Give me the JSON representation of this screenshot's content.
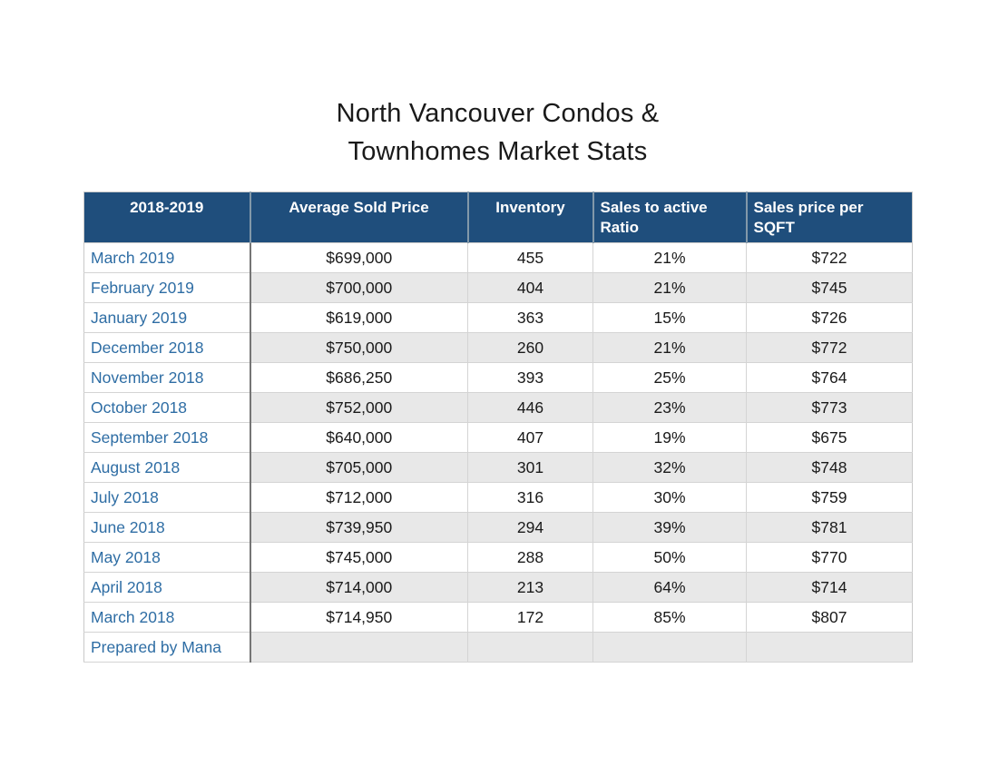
{
  "title": {
    "line1": "North Vancouver Condos &",
    "line2": "Townhomes Market Stats"
  },
  "table": {
    "columns": [
      {
        "label": "2018-2019",
        "align": "center"
      },
      {
        "label": "Average Sold Price",
        "align": "center"
      },
      {
        "label": "Inventory",
        "align": "center"
      },
      {
        "label": "Sales to active Ratio",
        "align": "left"
      },
      {
        "label": "Sales price per SQFT",
        "align": "left"
      }
    ],
    "rows": [
      {
        "month": "March 2019",
        "avg_sold_price": "$699,000",
        "inventory": "455",
        "ratio": "21%",
        "price_per_sqft": "$722"
      },
      {
        "month": "February 2019",
        "avg_sold_price": "$700,000",
        "inventory": "404",
        "ratio": "21%",
        "price_per_sqft": "$745"
      },
      {
        "month": "January 2019",
        "avg_sold_price": "$619,000",
        "inventory": "363",
        "ratio": "15%",
        "price_per_sqft": "$726"
      },
      {
        "month": "December 2018",
        "avg_sold_price": "$750,000",
        "inventory": "260",
        "ratio": "21%",
        "price_per_sqft": "$772"
      },
      {
        "month": "November 2018",
        "avg_sold_price": "$686,250",
        "inventory": "393",
        "ratio": "25%",
        "price_per_sqft": "$764"
      },
      {
        "month": "October 2018",
        "avg_sold_price": "$752,000",
        "inventory": "446",
        "ratio": "23%",
        "price_per_sqft": "$773"
      },
      {
        "month": "September 2018",
        "avg_sold_price": "$640,000",
        "inventory": "407",
        "ratio": "19%",
        "price_per_sqft": "$675"
      },
      {
        "month": "August 2018",
        "avg_sold_price": "$705,000",
        "inventory": "301",
        "ratio": "32%",
        "price_per_sqft": "$748"
      },
      {
        "month": "July 2018",
        "avg_sold_price": "$712,000",
        "inventory": "316",
        "ratio": "30%",
        "price_per_sqft": "$759"
      },
      {
        "month": "June 2018",
        "avg_sold_price": "$739,950",
        "inventory": "294",
        "ratio": "39%",
        "price_per_sqft": "$781"
      },
      {
        "month": "May 2018",
        "avg_sold_price": "$745,000",
        "inventory": "288",
        "ratio": "50%",
        "price_per_sqft": "$770"
      },
      {
        "month": "April 2018",
        "avg_sold_price": "$714,000",
        "inventory": "213",
        "ratio": "64%",
        "price_per_sqft": "$714"
      },
      {
        "month": "March 2018",
        "avg_sold_price": "$714,950",
        "inventory": "172",
        "ratio": "85%",
        "price_per_sqft": "$807"
      }
    ],
    "footer_row": {
      "label": "Prepared by Mana"
    }
  },
  "colors": {
    "header_bg": "#1f4e7c",
    "header_text": "#ffffff",
    "row_alt_bg": "#e8e8e8",
    "month_text": "#2e6da4",
    "cell_text": "#1a1a1a",
    "grid_line": "#d4d4d4",
    "month_divider": "#757575"
  },
  "chart_data": {
    "type": "table",
    "title": "North Vancouver Condos & Townhomes Market Stats",
    "columns": [
      "2018-2019",
      "Average Sold Price",
      "Inventory",
      "Sales to active Ratio",
      "Sales price per SQFT"
    ],
    "rows": [
      [
        "March 2019",
        699000,
        455,
        "21%",
        722
      ],
      [
        "February 2019",
        700000,
        404,
        "21%",
        745
      ],
      [
        "January 2019",
        619000,
        363,
        "15%",
        726
      ],
      [
        "December 2018",
        750000,
        260,
        "21%",
        772
      ],
      [
        "November 2018",
        686250,
        393,
        "25%",
        764
      ],
      [
        "October 2018",
        752000,
        446,
        "23%",
        773
      ],
      [
        "September 2018",
        640000,
        407,
        "19%",
        675
      ],
      [
        "August 2018",
        705000,
        301,
        "32%",
        748
      ],
      [
        "July 2018",
        712000,
        316,
        "30%",
        759
      ],
      [
        "June 2018",
        739950,
        294,
        "39%",
        781
      ],
      [
        "May 2018",
        745000,
        288,
        "50%",
        770
      ],
      [
        "April 2018",
        714000,
        213,
        "64%",
        714
      ],
      [
        "March 2018",
        714950,
        172,
        "85%",
        807
      ]
    ],
    "footer": "Prepared by Mana"
  }
}
